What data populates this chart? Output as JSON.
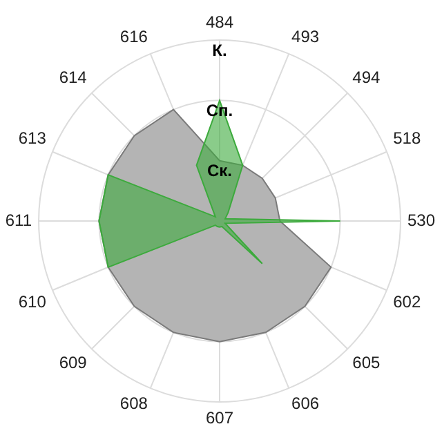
{
  "chart_data": {
    "type": "radar",
    "categories": [
      "484",
      "493",
      "494",
      "518",
      "530",
      "602",
      "605",
      "606",
      "607",
      "608",
      "609",
      "610",
      "611",
      "613",
      "614",
      "616"
    ],
    "ylim": [
      0,
      3
    ],
    "yticks": [
      {
        "value": 1,
        "label": "Ск."
      },
      {
        "value": 2,
        "label": "Сп."
      },
      {
        "value": 3,
        "label": "К."
      }
    ],
    "series": [
      {
        "color": "#b4b4b4",
        "values": [
          1,
          1,
          1,
          1,
          1,
          2,
          2,
          2,
          2,
          2,
          2,
          2,
          2,
          2,
          2,
          2
        ]
      },
      {
        "color": "#3caa3c",
        "values": [
          2,
          1,
          0.2,
          0.1,
          2,
          0.1,
          1,
          0.1,
          0.1,
          0.1,
          0.1,
          2,
          2,
          2,
          0.1,
          1
        ]
      }
    ],
    "grid": true,
    "legend": false,
    "marker": "none"
  }
}
